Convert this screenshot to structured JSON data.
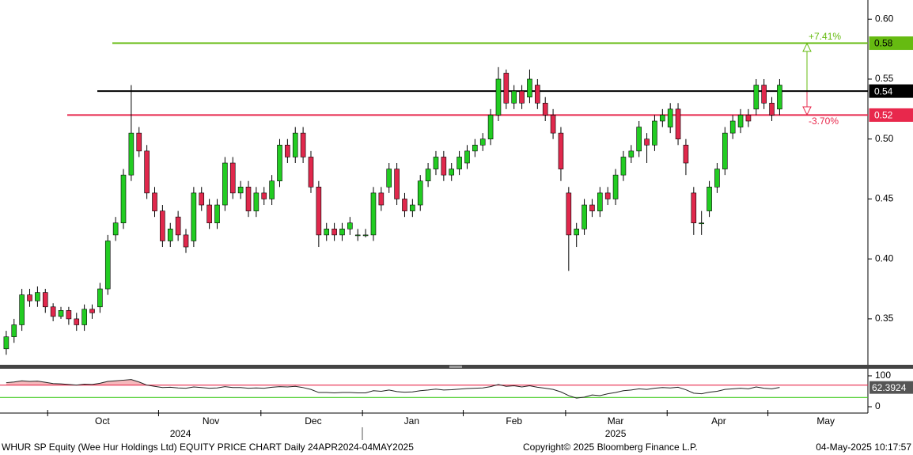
{
  "chart_data": [
    {
      "type": "candlestick",
      "open": [
        0.325,
        0.335,
        0.345,
        0.37,
        0.365,
        0.372,
        0.36,
        0.352,
        0.357,
        0.35,
        0.345,
        0.358,
        0.36,
        0.375,
        0.42,
        0.43,
        0.47,
        0.505,
        0.49,
        0.455,
        0.44,
        0.415,
        0.435,
        0.42,
        0.415,
        0.455,
        0.445,
        0.43,
        0.445,
        0.48,
        0.455,
        0.46,
        0.44,
        0.455,
        0.45,
        0.465,
        0.495,
        0.485,
        0.505,
        0.485,
        0.46,
        0.42,
        0.425,
        0.42,
        0.425,
        0.42,
        0.42,
        0.42,
        0.455,
        0.46,
        0.475,
        0.45,
        0.44,
        0.445,
        0.465,
        0.475,
        0.485,
        0.47,
        0.475,
        0.48,
        0.49,
        0.495,
        0.5,
        0.52,
        0.555,
        0.53,
        0.54,
        0.535,
        0.545,
        0.53,
        0.52,
        0.505,
        0.455,
        0.42,
        0.425,
        0.445,
        0.44,
        0.455,
        0.45,
        0.47,
        0.485,
        0.49,
        0.5,
        0.495,
        0.515,
        0.51,
        0.525,
        0.495,
        0.455,
        0.43,
        0.44,
        0.46,
        0.475,
        0.505,
        0.51,
        0.52,
        0.525,
        0.545,
        0.53,
        0.525
      ],
      "high": [
        0.34,
        0.35,
        0.375,
        0.375,
        0.377,
        0.375,
        0.363,
        0.36,
        0.36,
        0.355,
        0.362,
        0.362,
        0.38,
        0.42,
        0.435,
        0.475,
        0.545,
        0.51,
        0.495,
        0.46,
        0.445,
        0.43,
        0.44,
        0.425,
        0.46,
        0.46,
        0.45,
        0.45,
        0.485,
        0.485,
        0.465,
        0.465,
        0.46,
        0.46,
        0.47,
        0.5,
        0.5,
        0.51,
        0.51,
        0.49,
        0.465,
        0.43,
        0.43,
        0.43,
        0.435,
        0.425,
        0.425,
        0.46,
        0.46,
        0.48,
        0.48,
        0.455,
        0.45,
        0.47,
        0.48,
        0.49,
        0.49,
        0.48,
        0.49,
        0.495,
        0.5,
        0.505,
        0.525,
        0.56,
        0.558,
        0.545,
        0.545,
        0.558,
        0.55,
        0.535,
        0.525,
        0.51,
        0.46,
        0.43,
        0.45,
        0.45,
        0.46,
        0.46,
        0.475,
        0.49,
        0.495,
        0.515,
        0.505,
        0.52,
        0.525,
        0.53,
        0.53,
        0.5,
        0.46,
        0.44,
        0.465,
        0.48,
        0.51,
        0.52,
        0.525,
        0.525,
        0.55,
        0.55,
        0.535,
        0.55
      ],
      "low": [
        0.32,
        0.33,
        0.34,
        0.36,
        0.36,
        0.355,
        0.348,
        0.35,
        0.345,
        0.34,
        0.34,
        0.35,
        0.355,
        0.37,
        0.415,
        0.425,
        0.465,
        0.485,
        0.45,
        0.435,
        0.41,
        0.41,
        0.415,
        0.405,
        0.41,
        0.44,
        0.425,
        0.425,
        0.44,
        0.45,
        0.45,
        0.435,
        0.435,
        0.445,
        0.445,
        0.46,
        0.48,
        0.48,
        0.48,
        0.455,
        0.41,
        0.415,
        0.415,
        0.415,
        0.42,
        0.415,
        0.418,
        0.415,
        0.44,
        0.455,
        0.445,
        0.435,
        0.435,
        0.44,
        0.46,
        0.47,
        0.465,
        0.465,
        0.47,
        0.475,
        0.485,
        0.49,
        0.495,
        0.515,
        0.525,
        0.525,
        0.525,
        0.53,
        0.525,
        0.515,
        0.5,
        0.465,
        0.39,
        0.41,
        0.42,
        0.435,
        0.435,
        0.445,
        0.445,
        0.465,
        0.48,
        0.485,
        0.48,
        0.49,
        0.51,
        0.505,
        0.495,
        0.47,
        0.42,
        0.42,
        0.435,
        0.455,
        0.47,
        0.5,
        0.505,
        0.51,
        0.52,
        0.525,
        0.515,
        0.52
      ],
      "close": [
        0.335,
        0.345,
        0.37,
        0.365,
        0.372,
        0.36,
        0.352,
        0.357,
        0.35,
        0.345,
        0.358,
        0.355,
        0.375,
        0.415,
        0.43,
        0.47,
        0.505,
        0.49,
        0.455,
        0.44,
        0.415,
        0.425,
        0.42,
        0.41,
        0.455,
        0.445,
        0.43,
        0.445,
        0.48,
        0.455,
        0.46,
        0.44,
        0.455,
        0.45,
        0.465,
        0.495,
        0.485,
        0.505,
        0.485,
        0.46,
        0.42,
        0.425,
        0.42,
        0.425,
        0.43,
        0.42,
        0.42,
        0.455,
        0.445,
        0.475,
        0.45,
        0.44,
        0.445,
        0.465,
        0.475,
        0.485,
        0.47,
        0.475,
        0.485,
        0.49,
        0.495,
        0.5,
        0.52,
        0.55,
        0.53,
        0.54,
        0.53,
        0.55,
        0.53,
        0.52,
        0.505,
        0.475,
        0.42,
        0.425,
        0.445,
        0.44,
        0.455,
        0.45,
        0.47,
        0.485,
        0.49,
        0.51,
        0.495,
        0.515,
        0.52,
        0.525,
        0.5,
        0.48,
        0.43,
        0.43,
        0.46,
        0.475,
        0.505,
        0.515,
        0.52,
        0.515,
        0.545,
        0.53,
        0.52,
        0.545
      ],
      "up_color": "#22cc22",
      "down_color": "#e0284c",
      "xlim": [
        -0.8,
        110.3
      ],
      "ylim": [
        0.311,
        0.616
      ],
      "yticks": [
        {
          "value": 0.6,
          "label": "0.60"
        },
        0.55,
        {
          "value": 0.5,
          "label": "0.50"
        },
        0.45,
        {
          "value": 0.4,
          "label": "0.40"
        },
        0.35
      ],
      "xticks": [
        5.3,
        19.5,
        32.6,
        45.6,
        58.5,
        71.6,
        84.6,
        97.5
      ],
      "month_labels": [
        {
          "value": 12.3,
          "label": "Oct"
        },
        {
          "value": 26.2,
          "label": "Nov"
        },
        {
          "value": 39.3,
          "label": "Dec"
        },
        {
          "value": 51.9,
          "label": "Jan"
        },
        {
          "value": 65,
          "label": "Feb"
        },
        {
          "value": 78,
          "label": "Mar"
        },
        {
          "value": 91.2,
          "label": "Apr"
        },
        {
          "value": 104.9,
          "label": "May"
        }
      ],
      "year_labels": [
        {
          "value": 22.3,
          "label": "2024"
        },
        {
          "value": 78,
          "label": "2025"
        }
      ],
      "levels": [
        {
          "value": 0.58,
          "color": "#66bb11"
        },
        {
          "value": 0.54,
          "color": "#000000"
        },
        {
          "value": 0.52,
          "color": "#e8284c"
        }
      ],
      "annotations": [
        "+7.41%",
        "-3.70%"
      ]
    },
    {
      "type": "line",
      "name": "RSI",
      "color": "#222222",
      "values": [
        78,
        80,
        84,
        82,
        83,
        79,
        75,
        74,
        72,
        70,
        73,
        72,
        76,
        82,
        84,
        86,
        88,
        80,
        70,
        66,
        62,
        63,
        61,
        60,
        64,
        62,
        60,
        61,
        65,
        62,
        62,
        60,
        61,
        60,
        63,
        65,
        64,
        66,
        62,
        56,
        46,
        46,
        45,
        46,
        46,
        45,
        45,
        52,
        50,
        54,
        49,
        47,
        48,
        52,
        54,
        57,
        54,
        55,
        57,
        59,
        60,
        61,
        65,
        72,
        66,
        68,
        64,
        68,
        63,
        60,
        56,
        48,
        36,
        28,
        31,
        38,
        36,
        42,
        46,
        52,
        54,
        58,
        56,
        60,
        62,
        61,
        63,
        55,
        44,
        42,
        47,
        50,
        56,
        58,
        60,
        58,
        64,
        60,
        58,
        62.3924
      ],
      "ylim": [
        -20.5,
        123
      ],
      "yticks": [
        100,
        0
      ],
      "levels": [
        70,
        30
      ],
      "level_colors": [
        "#e8284c",
        "#44cc22"
      ]
    }
  ],
  "footer": {
    "left": "WHUR SP Equity (Wee Hur Holdings Ltd) EQUITY PRICE CHART  Daily 24APR2024-04MAY2025",
    "center": "Copyright© 2025 Bloomberg Finance L.P.",
    "right": "04-May-2025 10:17:57"
  }
}
